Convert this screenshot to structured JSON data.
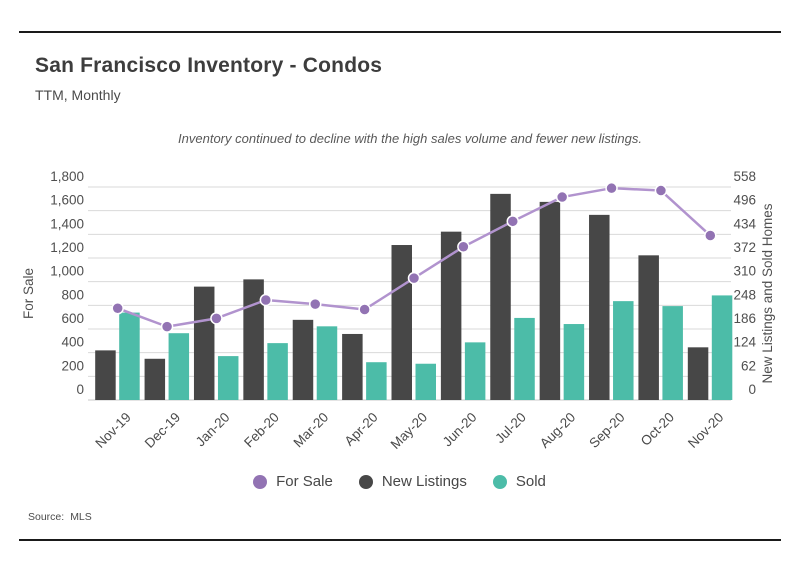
{
  "header": {
    "title": "San Francisco Inventory - Condos",
    "subtitle": "TTM, Monthly"
  },
  "annotation": "Inventory continued to decline with the high sales volume and fewer new listings.",
  "legend": {
    "items": [
      {
        "label": "For Sale",
        "color": "#9273b3"
      },
      {
        "label": "New Listings",
        "color": "#474747"
      },
      {
        "label": "Sold",
        "color": "#4cbca8"
      }
    ]
  },
  "footer": {
    "source_label": "Source:",
    "source_value": "MLS"
  },
  "chart_data": {
    "type": "combo",
    "title": "San Francisco Inventory - Condos",
    "categories": [
      "Nov-19",
      "Dec-19",
      "Jan-20",
      "Feb-20",
      "Mar-20",
      "Apr-20",
      "May-20",
      "Jun-20",
      "Jul-20",
      "Aug-20",
      "Sep-20",
      "Oct-20",
      "Nov-20"
    ],
    "series": [
      {
        "name": "For Sale",
        "type": "line",
        "axis": "left",
        "color": "#b193ce",
        "marker_color": "#9273b3",
        "values": [
          775,
          620,
          690,
          845,
          810,
          765,
          1030,
          1295,
          1510,
          1715,
          1790,
          1770,
          1390
        ]
      },
      {
        "name": "New Listings",
        "type": "bar",
        "axis": "right",
        "color": "#474747",
        "values": [
          130,
          108,
          297,
          316,
          210,
          173,
          406,
          441,
          540,
          519,
          485,
          379,
          138
        ]
      },
      {
        "name": "Sold",
        "type": "bar",
        "axis": "right",
        "color": "#4cbca8",
        "values": [
          229,
          175,
          115,
          149,
          193,
          99,
          95,
          151,
          215,
          199,
          259,
          246,
          274
        ]
      }
    ],
    "left_axis": {
      "label": "For Sale",
      "min": 0,
      "max": 1800,
      "step": 200,
      "ticks": [
        "0",
        "200",
        "400",
        "600",
        "800",
        "1,000",
        "1,200",
        "1,400",
        "1,600",
        "1,800"
      ]
    },
    "right_axis": {
      "label": "New Listings and Sold Homes",
      "min": 0,
      "max": 558,
      "step": 62,
      "ticks": [
        "0",
        "62",
        "124",
        "186",
        "248",
        "310",
        "372",
        "434",
        "496",
        "558"
      ]
    },
    "grid": true,
    "legend_position": "bottom"
  }
}
